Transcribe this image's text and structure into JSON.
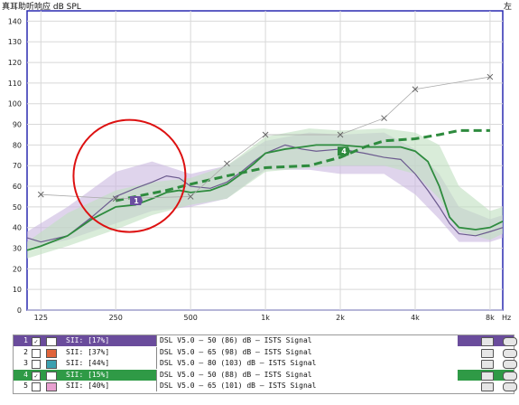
{
  "title": "真耳助听响应 dB SPL",
  "side_label": "左",
  "chart_data": {
    "type": "line",
    "ylabel": "dB SPL",
    "xlabel": "",
    "x_unit_label": "Hz",
    "x_ticks": [
      "125",
      "250",
      "500",
      "1k",
      "2k",
      "4k",
      "8k"
    ],
    "x_tick_values": [
      125,
      250,
      500,
      1000,
      2000,
      4000,
      8000
    ],
    "y_ticks": [
      0,
      10,
      20,
      30,
      40,
      50,
      60,
      70,
      80,
      90,
      100,
      110,
      120,
      130,
      140
    ],
    "ylim": [
      0,
      145
    ],
    "grid": true,
    "series": [
      {
        "name": "1",
        "color": "#6b5a8e",
        "style": "solid",
        "x": [
          110,
          125,
          160,
          200,
          250,
          300,
          350,
          400,
          450,
          500,
          600,
          700,
          800,
          900,
          1000,
          1200,
          1400,
          1600,
          2000,
          2500,
          3000,
          3500,
          4000,
          4500,
          5000,
          5500,
          6000,
          7000,
          8000,
          9000
        ],
        "y": [
          35,
          33,
          36,
          45,
          55,
          59,
          62,
          65,
          64,
          60,
          59,
          62,
          67,
          72,
          76,
          80,
          78,
          77,
          78,
          76,
          74,
          73,
          66,
          58,
          50,
          42,
          37,
          36,
          38,
          40
        ]
      },
      {
        "name": "4",
        "color": "#2e8b3e",
        "style": "solid",
        "x": [
          110,
          125,
          160,
          200,
          250,
          300,
          350,
          400,
          450,
          500,
          600,
          700,
          800,
          900,
          1000,
          1200,
          1400,
          1600,
          2000,
          2500,
          3000,
          3500,
          4000,
          4500,
          5000,
          5500,
          6000,
          7000,
          8000,
          9000
        ],
        "y": [
          29,
          31,
          36,
          44,
          50,
          51,
          54,
          57,
          58,
          57,
          58,
          61,
          66,
          71,
          76,
          78,
          79,
          80,
          80,
          79,
          79,
          79,
          77,
          72,
          60,
          45,
          40,
          39,
          40,
          43
        ]
      },
      {
        "name": "target 4",
        "color": "#2e8b3e",
        "style": "dashed",
        "x": [
          250,
          300,
          400,
          500,
          700,
          1000,
          1500,
          2000,
          2500,
          3000,
          4000,
          5000,
          6000,
          7000,
          8000
        ],
        "y": [
          53,
          55,
          58,
          61,
          65,
          69,
          70,
          74,
          79,
          82,
          83,
          85,
          87,
          87,
          87
        ]
      },
      {
        "name": "UCL",
        "color": "#888888",
        "style": "cross",
        "x": [
          125,
          250,
          500,
          700,
          1000,
          2000,
          3000,
          4000,
          8000
        ],
        "y": [
          56,
          54,
          55,
          71,
          85,
          85,
          93,
          107,
          113
        ]
      }
    ],
    "bands": [
      {
        "color": "#c9b8e0",
        "x": [
          110,
          160,
          250,
          350,
          500,
          700,
          1000,
          1500,
          2000,
          3000,
          4000,
          5000,
          6000,
          8000,
          9000
        ],
        "upper": [
          38,
          50,
          67,
          72,
          66,
          70,
          82,
          86,
          85,
          86,
          78,
          66,
          50,
          44,
          46
        ],
        "lower": [
          30,
          34,
          42,
          48,
          50,
          54,
          68,
          68,
          66,
          66,
          56,
          44,
          33,
          33,
          35
        ]
      },
      {
        "color": "#bfe0bf",
        "x": [
          110,
          160,
          250,
          350,
          500,
          700,
          1000,
          1500,
          2000,
          3000,
          4000,
          5000,
          6000,
          8000,
          9000
        ],
        "upper": [
          33,
          47,
          58,
          62,
          64,
          70,
          84,
          88,
          87,
          88,
          86,
          80,
          60,
          48,
          50
        ],
        "lower": [
          25,
          31,
          39,
          46,
          51,
          54,
          67,
          69,
          70,
          70,
          66,
          54,
          38,
          34,
          37
        ]
      }
    ],
    "markers": [
      {
        "label": "1",
        "x": 300,
        "y": 53,
        "color": "#6b4fa0"
      },
      {
        "label": "4",
        "x": 2050,
        "y": 77,
        "color": "#2e8b3e"
      }
    ],
    "annotation": {
      "shape": "circle",
      "color": "#dd1111",
      "x": 270,
      "y": 65
    }
  },
  "legend": [
    {
      "num": "1",
      "checked": true,
      "swatch": "#6a4c9c",
      "sii": "SII: [17%]",
      "desc": "DSL V5.0 — 50 (86) dB — ISTS Signal",
      "selected": "purple"
    },
    {
      "num": "2",
      "checked": false,
      "swatch": "#e0633a",
      "sii": "SII: [37%]",
      "desc": "DSL V5.0 — 65 (98) dB — ISTS Signal",
      "selected": ""
    },
    {
      "num": "3",
      "checked": false,
      "swatch": "#3aa0b0",
      "sii": "SII: [44%]",
      "desc": "DSL V5.0 — 80 (103) dB — ISTS Signal",
      "selected": ""
    },
    {
      "num": "4",
      "checked": true,
      "swatch": "#2f9a46",
      "sii": "SII: [15%]",
      "desc": "DSL V5.0 — 50 (88) dB — ISTS Signal",
      "selected": "green"
    },
    {
      "num": "5",
      "checked": false,
      "swatch": "#e8a0d0",
      "sii": "SII: [40%]",
      "desc": "DSL V5.0 — 65 (101) dB — ISTS Signal",
      "selected": ""
    }
  ]
}
